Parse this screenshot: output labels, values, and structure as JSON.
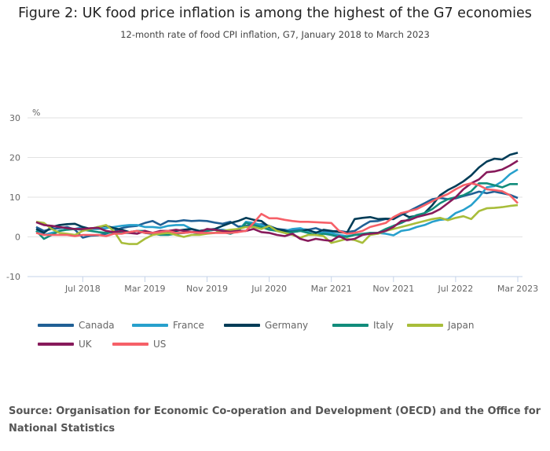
{
  "chart_data": {
    "type": "line",
    "title": "Figure 2: UK food price inflation is among the highest of the G7 economies",
    "subtitle": "12-month rate of food CPI inflation, G7, January 2018 to March 2023",
    "ylabel": "%",
    "x_start": "2018-01",
    "x_end": "2023-03",
    "x_frequency": "monthly",
    "x_tick_labels": [
      "Jul 2018",
      "Mar 2019",
      "Nov 2019",
      "Jul 2020",
      "Mar 2021",
      "Nov 2021",
      "Jul 2022",
      "Mar 2023"
    ],
    "x_tick_months": [
      "2018-07",
      "2019-03",
      "2019-11",
      "2020-07",
      "2021-03",
      "2021-11",
      "2022-07",
      "2023-03"
    ],
    "ylim": [
      -10,
      30
    ],
    "y_ticks": [
      30,
      20,
      10,
      0,
      -10
    ],
    "grid": true,
    "legend_placement": "bottom",
    "series": [
      {
        "name": "Canada",
        "color": "#206095",
        "values": [
          2.5,
          1.5,
          2.0,
          2.2,
          2.5,
          1.8,
          -0.2,
          0.3,
          0.4,
          0.8,
          1.5,
          2.2,
          2.6,
          2.8,
          3.5,
          4.0,
          3.0,
          4.0,
          3.9,
          4.2,
          4.0,
          4.1,
          4.0,
          3.6,
          3.3,
          3.8,
          2.6,
          2.8,
          3.0,
          3.2,
          2.8,
          2.0,
          1.8,
          1.5,
          2.0,
          1.8,
          2.2,
          1.5,
          1.4,
          1.5,
          1.2,
          1.5,
          2.8,
          3.9,
          4.0,
          4.5,
          4.5,
          5.5,
          6.5,
          7.5,
          8.5,
          9.5,
          9.8,
          9.5,
          9.7,
          10.3,
          10.8,
          11.4,
          11.0,
          11.4,
          11.0,
          10.6,
          9.8
        ]
      },
      {
        "name": "France",
        "color": "#27a0cc",
        "values": [
          1.5,
          0.5,
          1.0,
          1.5,
          2.0,
          2.0,
          2.5,
          2.0,
          2.0,
          2.2,
          2.5,
          2.8,
          3.0,
          3.0,
          2.5,
          2.5,
          2.3,
          2.8,
          3.0,
          3.0,
          2.0,
          1.5,
          1.5,
          1.8,
          1.8,
          1.5,
          1.5,
          3.8,
          3.5,
          3.0,
          2.0,
          1.5,
          1.5,
          2.0,
          2.2,
          1.5,
          1.2,
          1.0,
          1.0,
          0.5,
          0.2,
          0.5,
          0.5,
          1.0,
          1.0,
          0.8,
          0.4,
          1.5,
          1.8,
          2.5,
          3.0,
          3.8,
          4.3,
          4.5,
          6.0,
          6.8,
          8.0,
          10.0,
          12.5,
          12.8,
          14.0,
          15.8,
          17.0
        ]
      },
      {
        "name": "Germany",
        "color": "#003c57",
        "values": [
          2.0,
          1.0,
          2.5,
          3.0,
          3.2,
          3.3,
          2.5,
          2.0,
          2.5,
          2.8,
          2.2,
          1.8,
          1.2,
          1.5,
          1.0,
          0.8,
          0.8,
          1.2,
          1.5,
          1.8,
          2.0,
          1.5,
          1.8,
          2.0,
          2.8,
          3.5,
          4.0,
          4.8,
          4.3,
          4.0,
          2.5,
          2.0,
          1.5,
          1.2,
          1.5,
          1.8,
          1.0,
          1.8,
          1.5,
          1.2,
          1.0,
          4.5,
          4.8,
          5.0,
          4.5,
          4.6,
          4.5,
          6.0,
          5.0,
          5.3,
          6.0,
          8.0,
          10.5,
          11.8,
          12.8,
          14.0,
          15.5,
          17.5,
          19.0,
          19.7,
          19.5,
          20.7,
          21.2
        ]
      },
      {
        "name": "Italy",
        "color": "#118c7b",
        "values": [
          1.5,
          -0.5,
          0.5,
          1.5,
          1.8,
          2.0,
          1.8,
          1.5,
          1.2,
          1.0,
          1.2,
          1.0,
          1.0,
          1.5,
          1.5,
          0.8,
          0.5,
          0.5,
          0.8,
          1.0,
          1.2,
          0.8,
          1.5,
          1.8,
          1.2,
          0.8,
          1.5,
          3.5,
          3.0,
          2.5,
          1.8,
          1.5,
          1.0,
          1.2,
          1.5,
          1.0,
          0.5,
          0.8,
          0.5,
          0.0,
          0.0,
          0.5,
          0.8,
          1.0,
          1.0,
          2.0,
          2.8,
          3.5,
          4.5,
          5.5,
          6.0,
          7.0,
          8.5,
          9.5,
          10.0,
          10.5,
          11.5,
          13.5,
          13.5,
          13.0,
          12.5,
          13.3,
          13.3
        ]
      },
      {
        "name": "Japan",
        "color": "#a8bd3a",
        "values": [
          3.8,
          3.5,
          2.0,
          1.0,
          0.8,
          0.5,
          1.5,
          2.0,
          2.5,
          3.0,
          1.5,
          -1.5,
          -1.8,
          -1.8,
          -0.5,
          0.5,
          0.8,
          1.0,
          0.5,
          0.0,
          0.5,
          0.5,
          0.8,
          1.0,
          1.5,
          1.8,
          2.0,
          2.5,
          2.5,
          2.0,
          2.8,
          1.5,
          1.0,
          0.5,
          -0.2,
          0.5,
          0.5,
          0.2,
          -1.5,
          -1.0,
          -0.5,
          -0.8,
          -1.5,
          0.5,
          0.8,
          1.5,
          2.0,
          2.5,
          3.0,
          3.5,
          4.0,
          4.5,
          4.8,
          4.2,
          4.8,
          5.2,
          4.5,
          6.5,
          7.2,
          7.3,
          7.5,
          7.8,
          8.0
        ]
      },
      {
        "name": "UK",
        "color": "#871a5b",
        "values": [
          3.7,
          3.0,
          2.8,
          2.5,
          2.2,
          2.0,
          2.0,
          2.2,
          2.3,
          1.5,
          1.2,
          1.5,
          1.0,
          0.8,
          1.5,
          1.0,
          1.5,
          1.5,
          1.8,
          1.5,
          1.3,
          1.2,
          2.0,
          1.8,
          1.5,
          1.3,
          1.5,
          1.5,
          2.0,
          1.2,
          1.0,
          0.5,
          0.2,
          0.8,
          -0.5,
          -1.0,
          -0.5,
          -0.8,
          -1.0,
          0.2,
          -0.8,
          -0.5,
          0.5,
          0.8,
          1.0,
          1.5,
          2.5,
          4.0,
          4.2,
          5.0,
          5.5,
          6.0,
          7.0,
          8.5,
          10.0,
          12.0,
          13.5,
          14.5,
          16.3,
          16.5,
          17.0,
          18.0,
          19.2
        ]
      },
      {
        "name": "US",
        "color": "#f66068",
        "values": [
          1.0,
          0.5,
          0.5,
          0.5,
          0.5,
          0.2,
          0.5,
          0.5,
          0.5,
          0.2,
          0.8,
          0.8,
          1.2,
          1.5,
          1.0,
          1.0,
          1.2,
          1.5,
          1.0,
          1.0,
          1.2,
          1.0,
          1.0,
          1.0,
          1.0,
          1.0,
          1.2,
          1.5,
          3.5,
          5.8,
          4.7,
          4.7,
          4.3,
          4.0,
          3.8,
          3.8,
          3.7,
          3.6,
          3.5,
          1.5,
          0.8,
          1.0,
          1.5,
          2.5,
          3.0,
          3.5,
          5.0,
          6.0,
          6.5,
          7.0,
          8.0,
          9.0,
          10.0,
          10.8,
          12.0,
          13.0,
          13.5,
          13.0,
          12.0,
          11.8,
          11.5,
          10.5,
          8.5
        ]
      }
    ]
  },
  "source": "Source: Organisation for Economic Co-operation and Development (OECD) and the Office for National Statistics"
}
